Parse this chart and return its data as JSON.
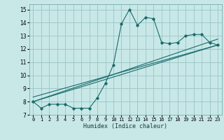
{
  "xlabel": "Humidex (Indice chaleur)",
  "ylabel": "",
  "xlim": [
    -0.5,
    23.5
  ],
  "ylim": [
    7,
    15.4
  ],
  "yticks": [
    7,
    8,
    9,
    10,
    11,
    12,
    13,
    14,
    15
  ],
  "xticks": [
    0,
    1,
    2,
    3,
    4,
    5,
    6,
    7,
    8,
    9,
    10,
    11,
    12,
    13,
    14,
    15,
    16,
    17,
    18,
    19,
    20,
    21,
    22,
    23
  ],
  "bg_color": "#c8e8e8",
  "grid_color": "#a0c8c8",
  "line_color": "#1a6b6b",
  "main_data": [
    [
      0,
      8.0
    ],
    [
      1,
      7.5
    ],
    [
      2,
      7.8
    ],
    [
      3,
      7.8
    ],
    [
      4,
      7.8
    ],
    [
      5,
      7.5
    ],
    [
      6,
      7.5
    ],
    [
      7,
      7.5
    ],
    [
      8,
      8.3
    ],
    [
      9,
      9.4
    ],
    [
      10,
      10.8
    ],
    [
      11,
      13.9
    ],
    [
      12,
      15.0
    ],
    [
      13,
      13.8
    ],
    [
      14,
      14.4
    ],
    [
      15,
      14.3
    ],
    [
      16,
      12.5
    ],
    [
      17,
      12.4
    ],
    [
      18,
      12.5
    ],
    [
      19,
      13.0
    ],
    [
      20,
      13.1
    ],
    [
      21,
      13.1
    ],
    [
      22,
      12.5
    ],
    [
      23,
      12.3
    ]
  ],
  "trend_line1": [
    [
      0,
      8.0
    ],
    [
      23,
      12.3
    ]
  ],
  "trend_line2": [
    [
      0,
      8.0
    ],
    [
      23,
      12.75
    ]
  ],
  "trend_line3": [
    [
      0,
      8.35
    ],
    [
      23,
      12.3
    ]
  ]
}
